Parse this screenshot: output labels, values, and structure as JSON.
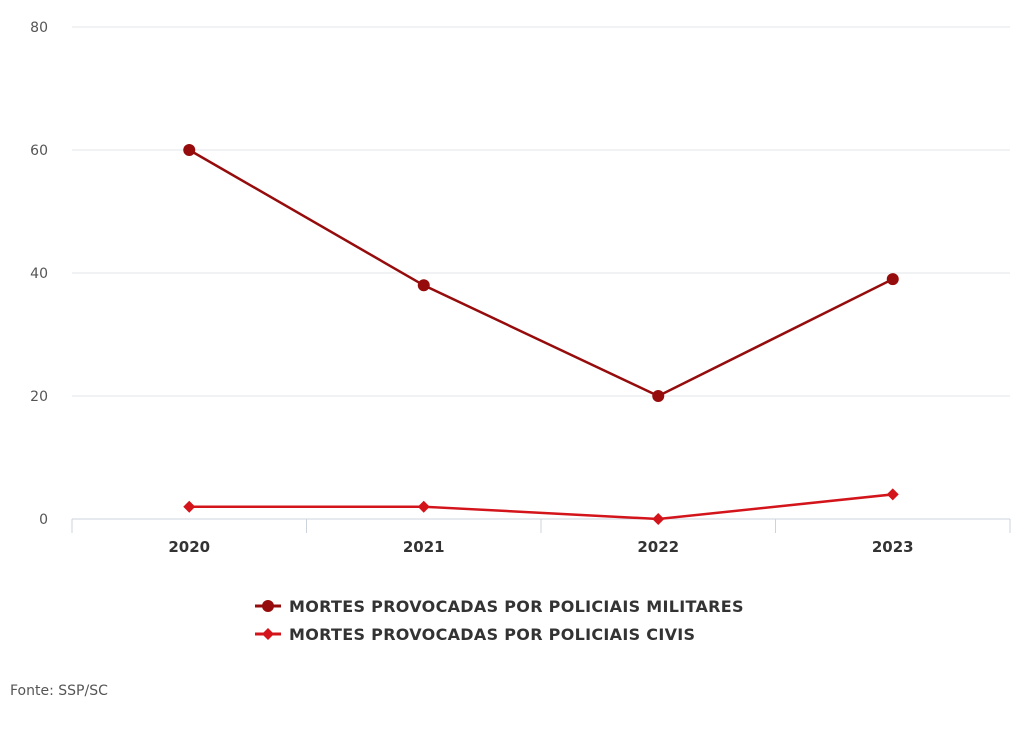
{
  "chart_data": {
    "type": "line",
    "categories": [
      "2020",
      "2021",
      "2022",
      "2023"
    ],
    "ylim": [
      0,
      80
    ],
    "yticks": [
      0,
      20,
      40,
      60,
      80
    ],
    "grid": true,
    "series": [
      {
        "name": "MORTES PROVOCADAS POR POLICIAIS MILITARES",
        "values": [
          60,
          38,
          20,
          39
        ],
        "color": "#960c0c",
        "marker": "circle"
      },
      {
        "name": "MORTES PROVOCADAS POR POLICIAIS CIVIS",
        "values": [
          2,
          2,
          0,
          4
        ],
        "color": "#d3141b",
        "marker": "diamond"
      }
    ],
    "legend_position": "bottom",
    "source": "Fonte: SSP/SC"
  }
}
